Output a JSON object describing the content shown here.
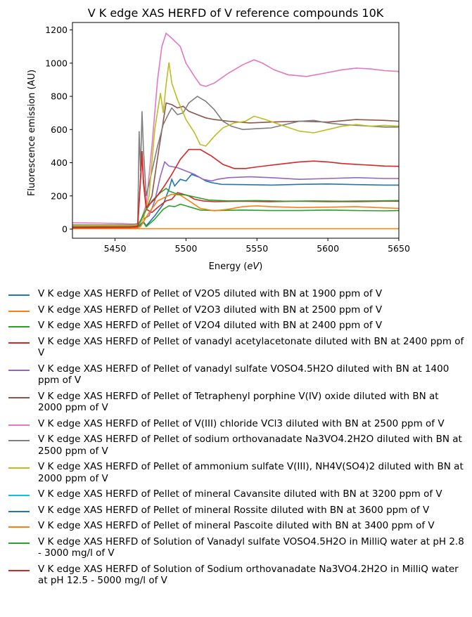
{
  "chart_data": {
    "type": "line",
    "title": "V K edge XAS HERFD of V reference compounds 10K",
    "xlabel_prefix": "Energy (",
    "xlabel_unit": "eV",
    "xlabel_suffix": ")",
    "ylabel": "Fluorescence emission (AU)",
    "xlim": [
      5420,
      5650
    ],
    "ylim": [
      -55,
      1245
    ],
    "xticks": [
      5450,
      5500,
      5550,
      5600,
      5650
    ],
    "yticks": [
      0,
      200,
      400,
      600,
      800,
      1000,
      1200
    ],
    "grid": false,
    "legend_position": "below",
    "series": [
      {
        "name": "V K edge XAS HERFD of Pellet of V2O5 diluted with BN at 1900 ppm of V",
        "color": "#1f77b4",
        "points": [
          [
            5420,
            8
          ],
          [
            5460,
            10
          ],
          [
            5466,
            14
          ],
          [
            5470,
            45
          ],
          [
            5472,
            20
          ],
          [
            5478,
            80
          ],
          [
            5484,
            150
          ],
          [
            5488,
            240
          ],
          [
            5490,
            300
          ],
          [
            5492,
            260
          ],
          [
            5496,
            300
          ],
          [
            5500,
            290
          ],
          [
            5504,
            330
          ],
          [
            5510,
            310
          ],
          [
            5514,
            290
          ],
          [
            5518,
            280
          ],
          [
            5525,
            270
          ],
          [
            5540,
            268
          ],
          [
            5560,
            265
          ],
          [
            5580,
            270
          ],
          [
            5600,
            272
          ],
          [
            5620,
            268
          ],
          [
            5640,
            265
          ],
          [
            5650,
            265
          ]
        ]
      },
      {
        "name": "V K edge XAS HERFD of Pellet of V2O3 diluted with BN at 2500 ppm of V",
        "color": "#ff7f0e",
        "points": [
          [
            5420,
            2
          ],
          [
            5650,
            2
          ]
        ]
      },
      {
        "name": "V K edge XAS HERFD of Pellet of V2O4 diluted with BN at 2400 ppm of V",
        "color": "#2ca02c",
        "points": [
          [
            5420,
            5
          ],
          [
            5460,
            6
          ],
          [
            5466,
            8
          ],
          [
            5470,
            40
          ],
          [
            5472,
            15
          ],
          [
            5478,
            60
          ],
          [
            5484,
            120
          ],
          [
            5488,
            140
          ],
          [
            5492,
            135
          ],
          [
            5496,
            150
          ],
          [
            5500,
            140
          ],
          [
            5504,
            130
          ],
          [
            5510,
            115
          ],
          [
            5520,
            112
          ],
          [
            5540,
            115
          ],
          [
            5560,
            112
          ],
          [
            5580,
            112
          ],
          [
            5600,
            115
          ],
          [
            5620,
            112
          ],
          [
            5640,
            110
          ],
          [
            5650,
            112
          ]
        ]
      },
      {
        "name": "V K edge XAS HERFD of Pellet of vanadyl acetylacetonate diluted with BN at 2400 ppm of V",
        "color": "#d62728",
        "points": [
          [
            5420,
            12
          ],
          [
            5460,
            14
          ],
          [
            5466,
            20
          ],
          [
            5468,
            300
          ],
          [
            5469,
            455
          ],
          [
            5470,
            280
          ],
          [
            5472,
            120
          ],
          [
            5476,
            100
          ],
          [
            5480,
            130
          ],
          [
            5486,
            170
          ],
          [
            5490,
            180
          ],
          [
            5494,
            220
          ],
          [
            5498,
            210
          ],
          [
            5502,
            200
          ],
          [
            5506,
            180
          ],
          [
            5512,
            170
          ],
          [
            5520,
            165
          ],
          [
            5540,
            168
          ],
          [
            5560,
            165
          ],
          [
            5580,
            168
          ],
          [
            5600,
            165
          ],
          [
            5620,
            165
          ],
          [
            5640,
            168
          ],
          [
            5650,
            168
          ]
        ]
      },
      {
        "name": "V K edge XAS HERFD of Pellet of vanadyl sulfate VOSO4.5H2O diluted with BN at 1400 ppm of V",
        "color": "#9467bd",
        "points": [
          [
            5420,
            12
          ],
          [
            5460,
            14
          ],
          [
            5466,
            25
          ],
          [
            5470,
            60
          ],
          [
            5474,
            80
          ],
          [
            5478,
            170
          ],
          [
            5482,
            320
          ],
          [
            5485,
            405
          ],
          [
            5488,
            380
          ],
          [
            5494,
            370
          ],
          [
            5500,
            350
          ],
          [
            5506,
            330
          ],
          [
            5512,
            300
          ],
          [
            5518,
            290
          ],
          [
            5522,
            300
          ],
          [
            5530,
            310
          ],
          [
            5545,
            315
          ],
          [
            5560,
            310
          ],
          [
            5580,
            300
          ],
          [
            5600,
            305
          ],
          [
            5620,
            310
          ],
          [
            5640,
            305
          ],
          [
            5650,
            305
          ]
        ]
      },
      {
        "name": "V K edge XAS HERFD of Pellet of Tetraphenyl porphine V(IV) oxide  diluted with BN at 2000 ppm of V",
        "color": "#8c564b",
        "points": [
          [
            5420,
            15
          ],
          [
            5460,
            18
          ],
          [
            5466,
            25
          ],
          [
            5470,
            80
          ],
          [
            5476,
            200
          ],
          [
            5480,
            430
          ],
          [
            5484,
            650
          ],
          [
            5486,
            760
          ],
          [
            5490,
            750
          ],
          [
            5494,
            730
          ],
          [
            5498,
            740
          ],
          [
            5502,
            710
          ],
          [
            5508,
            690
          ],
          [
            5514,
            670
          ],
          [
            5520,
            660
          ],
          [
            5530,
            650
          ],
          [
            5545,
            640
          ],
          [
            5560,
            645
          ],
          [
            5580,
            650
          ],
          [
            5600,
            645
          ],
          [
            5620,
            660
          ],
          [
            5640,
            655
          ],
          [
            5650,
            650
          ]
        ]
      },
      {
        "name": "V K edge XAS HERFD of Pellet of V(III) chloride VCl3 diluted with BN at 2500 ppm of V",
        "color": "#e377c2",
        "points": [
          [
            5420,
            38
          ],
          [
            5440,
            36
          ],
          [
            5455,
            33
          ],
          [
            5464,
            30
          ],
          [
            5468,
            40
          ],
          [
            5472,
            150
          ],
          [
            5476,
            500
          ],
          [
            5480,
            900
          ],
          [
            5483,
            1100
          ],
          [
            5486,
            1180
          ],
          [
            5490,
            1150
          ],
          [
            5496,
            1100
          ],
          [
            5500,
            1000
          ],
          [
            5506,
            920
          ],
          [
            5510,
            870
          ],
          [
            5514,
            860
          ],
          [
            5520,
            880
          ],
          [
            5530,
            940
          ],
          [
            5540,
            990
          ],
          [
            5548,
            1020
          ],
          [
            5554,
            1000
          ],
          [
            5562,
            960
          ],
          [
            5572,
            930
          ],
          [
            5585,
            920
          ],
          [
            5598,
            940
          ],
          [
            5610,
            960
          ],
          [
            5620,
            970
          ],
          [
            5630,
            965
          ],
          [
            5640,
            955
          ],
          [
            5650,
            950
          ]
        ]
      },
      {
        "name": "V K edge XAS HERFD of Pellet of sodium orthovanadate Na3VO4.2H2O diluted with BN at 2500 ppm of V",
        "color": "#7f7f7f",
        "points": [
          [
            5420,
            25
          ],
          [
            5460,
            26
          ],
          [
            5466,
            30
          ],
          [
            5467,
            590
          ],
          [
            5468,
            350
          ],
          [
            5469,
            710
          ],
          [
            5470,
            480
          ],
          [
            5472,
            200
          ],
          [
            5476,
            350
          ],
          [
            5480,
            500
          ],
          [
            5484,
            630
          ],
          [
            5488,
            700
          ],
          [
            5490,
            730
          ],
          [
            5494,
            690
          ],
          [
            5498,
            700
          ],
          [
            5502,
            760
          ],
          [
            5508,
            800
          ],
          [
            5514,
            770
          ],
          [
            5520,
            720
          ],
          [
            5526,
            650
          ],
          [
            5532,
            620
          ],
          [
            5540,
            600
          ],
          [
            5550,
            605
          ],
          [
            5560,
            610
          ],
          [
            5570,
            630
          ],
          [
            5580,
            650
          ],
          [
            5590,
            655
          ],
          [
            5600,
            640
          ],
          [
            5610,
            630
          ],
          [
            5620,
            625
          ],
          [
            5630,
            620
          ],
          [
            5640,
            615
          ],
          [
            5650,
            615
          ]
        ]
      },
      {
        "name": "V K edge XAS HERFD of Pellet of ammonium sulfate V(III), NH4V(SO4)2 diluted with BN at 2000 ppm of V",
        "color": "#bcbd22",
        "points": [
          [
            5420,
            20
          ],
          [
            5460,
            22
          ],
          [
            5466,
            25
          ],
          [
            5470,
            60
          ],
          [
            5474,
            200
          ],
          [
            5478,
            600
          ],
          [
            5482,
            820
          ],
          [
            5484,
            700
          ],
          [
            5486,
            870
          ],
          [
            5488,
            1005
          ],
          [
            5490,
            880
          ],
          [
            5494,
            780
          ],
          [
            5500,
            660
          ],
          [
            5506,
            580
          ],
          [
            5510,
            510
          ],
          [
            5514,
            500
          ],
          [
            5520,
            560
          ],
          [
            5526,
            610
          ],
          [
            5534,
            640
          ],
          [
            5542,
            650
          ],
          [
            5548,
            680
          ],
          [
            5556,
            660
          ],
          [
            5566,
            630
          ],
          [
            5580,
            590
          ],
          [
            5590,
            580
          ],
          [
            5600,
            600
          ],
          [
            5610,
            620
          ],
          [
            5620,
            630
          ],
          [
            5630,
            620
          ],
          [
            5640,
            625
          ],
          [
            5650,
            620
          ]
        ]
      },
      {
        "name": "V K edge XAS HERFD of Pellet of mineral Cavansite diluted with BN at 3200 ppm of V",
        "color": "#17becf",
        "points": []
      },
      {
        "name": "V K edge XAS HERFD of Pellet of mineral Rossite diluted with BN at 3600 ppm of V",
        "color": "#1f77b4",
        "points": []
      },
      {
        "name": "V K edge XAS HERFD of Pellet of mineral Pascoite diluted with BN at 3400 ppm of V",
        "color": "#ff7f0e",
        "points": [
          [
            5420,
            4
          ],
          [
            5464,
            5
          ],
          [
            5468,
            15
          ],
          [
            5474,
            100
          ],
          [
            5480,
            170
          ],
          [
            5486,
            195
          ],
          [
            5490,
            210
          ],
          [
            5496,
            205
          ],
          [
            5504,
            160
          ],
          [
            5510,
            125
          ],
          [
            5520,
            110
          ],
          [
            5530,
            120
          ],
          [
            5540,
            135
          ],
          [
            5550,
            140
          ],
          [
            5560,
            135
          ],
          [
            5580,
            130
          ],
          [
            5600,
            132
          ],
          [
            5620,
            135
          ],
          [
            5640,
            128
          ],
          [
            5650,
            125
          ]
        ]
      },
      {
        "name": "V K edge XAS HERFD of Solution of Vanadyl sulfate VOSO4.5H2O in MilliQ water at pH 2.8 - 3000 mg/l of V",
        "color": "#2ca02c",
        "points": [
          [
            5420,
            8
          ],
          [
            5460,
            10
          ],
          [
            5466,
            14
          ],
          [
            5470,
            90
          ],
          [
            5476,
            170
          ],
          [
            5482,
            220
          ],
          [
            5486,
            245
          ],
          [
            5488,
            230
          ],
          [
            5494,
            210
          ],
          [
            5500,
            205
          ],
          [
            5508,
            190
          ],
          [
            5516,
            175
          ],
          [
            5530,
            170
          ],
          [
            5550,
            172
          ],
          [
            5570,
            168
          ],
          [
            5590,
            170
          ],
          [
            5610,
            168
          ],
          [
            5630,
            170
          ],
          [
            5650,
            172
          ]
        ]
      },
      {
        "name": "V K edge XAS HERFD of Solution of Sodium orthovanadate Na3VO4.2H2O in MilliQ water at pH 12.5 - 5000 mg/l of V",
        "color": "#d62728",
        "points": [
          [
            5420,
            8
          ],
          [
            5460,
            10
          ],
          [
            5466,
            15
          ],
          [
            5469,
            470
          ],
          [
            5470,
            300
          ],
          [
            5472,
            130
          ],
          [
            5478,
            180
          ],
          [
            5484,
            250
          ],
          [
            5490,
            330
          ],
          [
            5496,
            420
          ],
          [
            5502,
            480
          ],
          [
            5510,
            480
          ],
          [
            5518,
            440
          ],
          [
            5526,
            390
          ],
          [
            5534,
            365
          ],
          [
            5542,
            365
          ],
          [
            5550,
            375
          ],
          [
            5560,
            385
          ],
          [
            5570,
            395
          ],
          [
            5580,
            405
          ],
          [
            5590,
            410
          ],
          [
            5600,
            405
          ],
          [
            5610,
            395
          ],
          [
            5620,
            390
          ],
          [
            5630,
            385
          ],
          [
            5640,
            380
          ],
          [
            5650,
            378
          ]
        ]
      }
    ]
  }
}
